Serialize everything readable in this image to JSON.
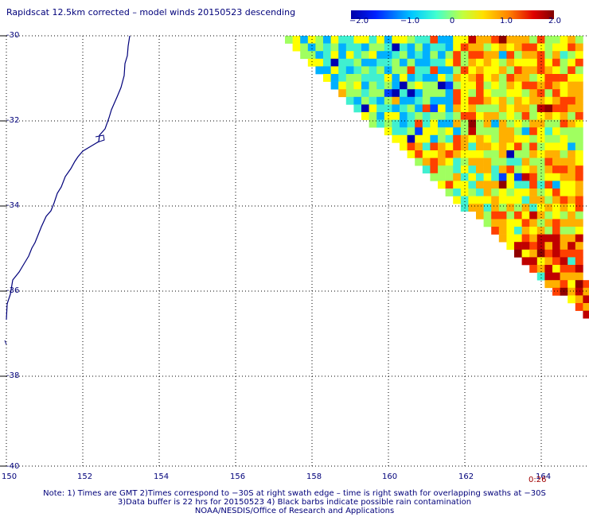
{
  "title": "Rapidscat 12.5km corrected – model winds 20150523 descending",
  "colorbar": {
    "labels": [
      "−2.0",
      "−1.0",
      "0",
      "1.0",
      "2.0"
    ],
    "min": -2.0,
    "max": 2.0,
    "colors": [
      "#0000b0",
      "#0040ff",
      "#00b0ff",
      "#40f0d0",
      "#a0ff60",
      "#ffff00",
      "#ffb000",
      "#ff4000",
      "#c00000",
      "#900000"
    ]
  },
  "axes": {
    "x_ticks": [
      "150",
      "152",
      "154",
      "156",
      "158",
      "160",
      "162",
      "164"
    ],
    "y_ticks": [
      "-30",
      "-32",
      "-34",
      "-36",
      "-38",
      "-40"
    ]
  },
  "time_label": "0:26",
  "notes": {
    "line1": "Note: 1) Times are GMT 2)Times correspond to −30S at right swath edge – time is right swath for overlapping swaths at −30S",
    "line2": "3)Data buffer is 22 hrs for 20150523 4) Black barbs indicate possible rain contamination",
    "line3": "NOAA/NESDIS/Office of Research and Applications"
  }
}
